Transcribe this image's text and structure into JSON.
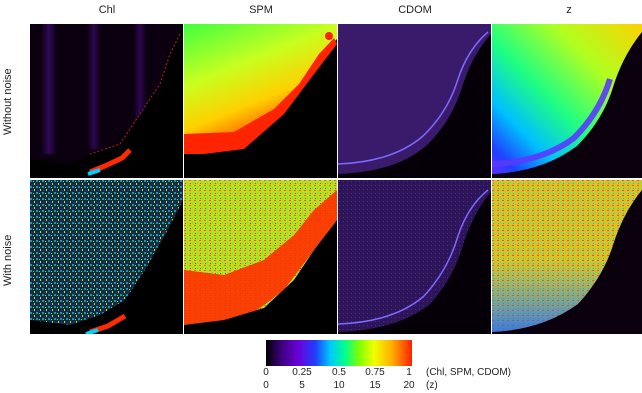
{
  "columns": [
    {
      "title": "Chl"
    },
    {
      "title": "SPM"
    },
    {
      "title": "CDOM"
    },
    {
      "title": "z"
    }
  ],
  "rows": [
    {
      "label": "Without noise"
    },
    {
      "label": "With noise"
    }
  ],
  "colorbar": {
    "ticks_fraction": [
      "0",
      "0.25",
      "0.5",
      "0.75",
      "1"
    ],
    "ticks_depth": [
      "0",
      "5",
      "10",
      "15",
      "20"
    ],
    "label_fraction": "(Chl, SPM, CDOM)",
    "label_depth": "(z)"
  }
}
